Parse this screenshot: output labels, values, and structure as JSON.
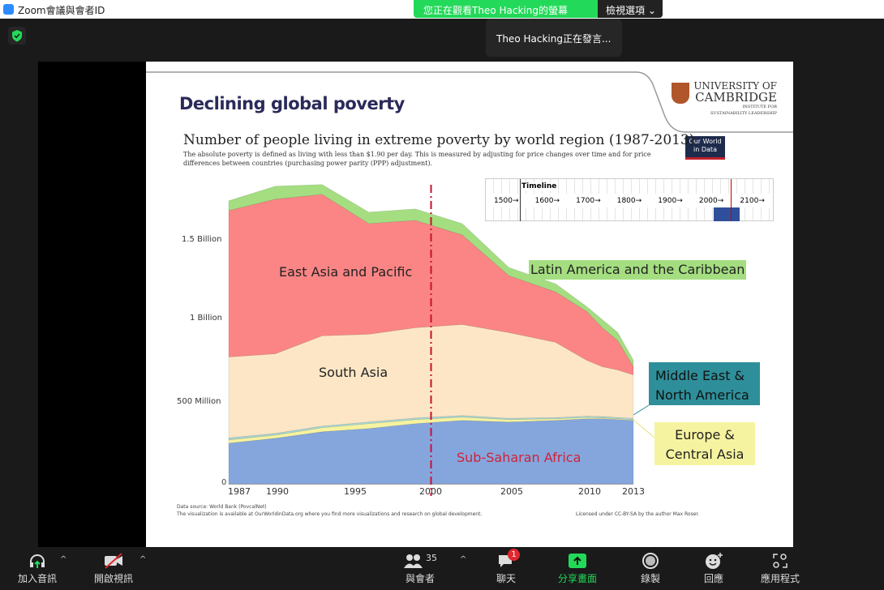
{
  "window": {
    "title": "Zoom會議與會者ID",
    "viewing_banner": "您正在觀看Theo  Hacking的螢幕",
    "view_options": "檢視選項",
    "speaking": "Theo  Hacking正在發言..."
  },
  "slide": {
    "title": "Declining global poverty",
    "logo": {
      "line1": "UNIVERSITY OF",
      "line2": "CAMBRIDGE",
      "line3": "INSTITUTE FOR",
      "line4": "SUSTAINABILITY LEADERSHIP"
    },
    "owid_logo": "Our World in Data",
    "source": "Data source: World Bank (PovcalNet)",
    "availability": "The visualization is available at OurWorldinData.org where you find more visualizations and research on global development.",
    "license": "Licensed under CC-BY-SA by the author Max Roser.",
    "timeline": {
      "title": "Timeline",
      "ticks": [
        "1500→",
        "1600→",
        "1700→",
        "1800→",
        "1900→",
        "2000→",
        "2100→"
      ]
    }
  },
  "chart_data": {
    "type": "area",
    "title": "Number of people living in extreme poverty by world region (1987-2013)",
    "subtitle": "The absolute poverty is defined as living with less than $1.90 per day. This is measured by adjusting for price changes over time and for price differences between countries (purchasing power parity (PPP) adjustment).",
    "x": [
      1987,
      1990,
      1993,
      1996,
      1999,
      2002,
      2005,
      2008,
      2010,
      2011,
      2012,
      2013
    ],
    "x_ticks": [
      "1987",
      "1990",
      "1995",
      "2000",
      "2005",
      "2010",
      "2013"
    ],
    "y_ticks": [
      "0",
      "500 Million",
      "1 Billion",
      "1.5 Billion"
    ],
    "ylim": [
      0,
      1900
    ],
    "unit": "millions",
    "marker_year": 2000,
    "series": [
      {
        "name": "Sub-Saharan Africa",
        "color": "#85a6dd",
        "values": [
          250,
          280,
          320,
          340,
          370,
          390,
          380,
          390,
          400,
          400,
          395,
          390
        ]
      },
      {
        "name": "Europe & Central Asia",
        "color": "#f6f3a0",
        "values": [
          20,
          20,
          25,
          30,
          25,
          20,
          15,
          10,
          8,
          6,
          5,
          5
        ]
      },
      {
        "name": "Middle East & North America",
        "color": "#a8d8d4",
        "values": [
          12,
          10,
          10,
          10,
          10,
          10,
          8,
          8,
          8,
          8,
          8,
          8
        ]
      },
      {
        "name": "South Asia",
        "color": "#fce6c6",
        "values": [
          498,
          490,
          555,
          540,
          555,
          560,
          527,
          462,
          344,
          306,
          292,
          267
        ]
      },
      {
        "name": "East Asia and Pacific",
        "color": "#fb8585",
        "values": [
          900,
          950,
          870,
          680,
          660,
          550,
          350,
          310,
          300,
          240,
          180,
          50
        ]
      },
      {
        "name": "Latin America and the Caribbean",
        "color": "#a4de80",
        "values": [
          60,
          80,
          60,
          70,
          70,
          70,
          50,
          50,
          30,
          50,
          50,
          40
        ]
      }
    ]
  },
  "toolbar": {
    "audio": "加入音訊",
    "video": "開啟視訊",
    "participants": "與會者",
    "participants_count": "35",
    "chat": "聊天",
    "chat_badge": "1",
    "share": "分享畫面",
    "record": "錄製",
    "reactions": "回應",
    "apps": "應用程式"
  }
}
